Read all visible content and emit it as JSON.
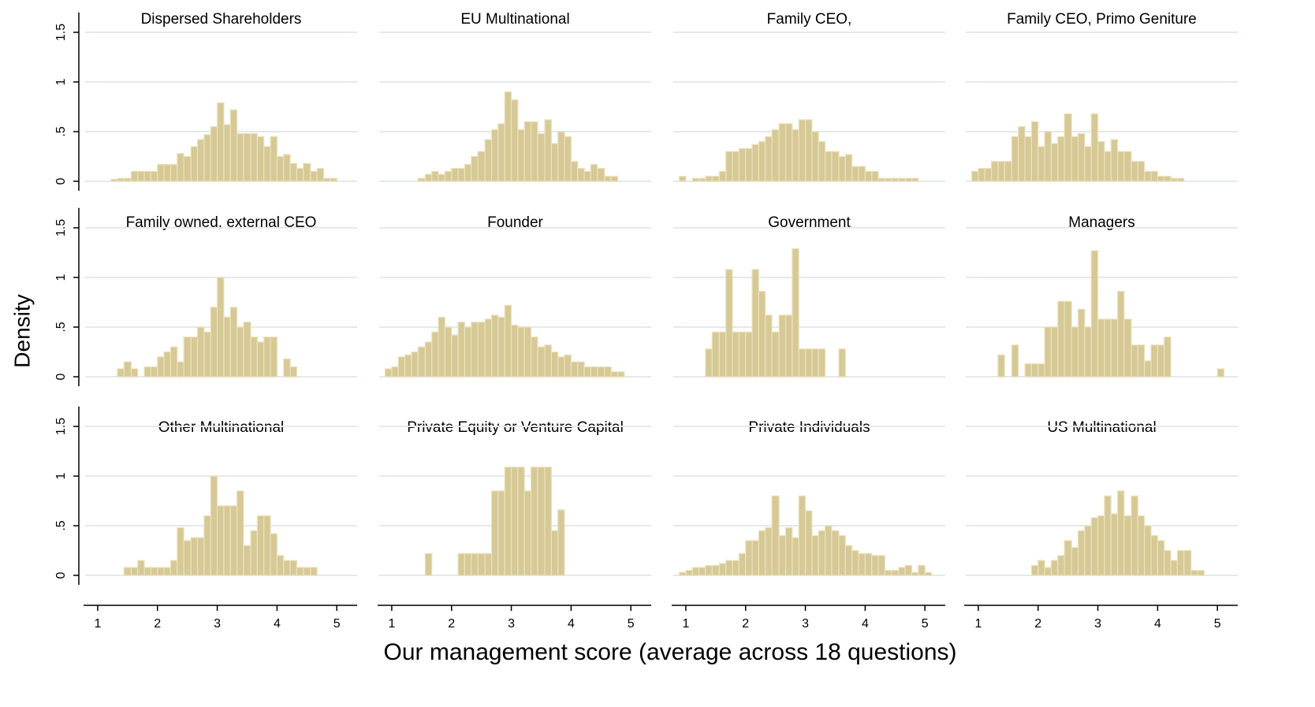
{
  "ylabel": "Density",
  "xlabel": "Our management score (average across 18 questions)",
  "chart_data": [
    {
      "type": "histogram",
      "title": "Dispersed Shareholders",
      "color": "#d6c995",
      "grid": true,
      "bins": [
        0.89,
        1,
        1.11,
        1.22,
        1.33,
        1.44,
        1.56,
        1.67,
        1.78,
        1.89,
        2,
        2.11,
        2.22,
        2.33,
        2.44,
        2.56,
        2.67,
        2.78,
        2.89,
        3,
        3.11,
        3.22,
        3.33,
        3.44,
        3.56,
        3.67,
        3.78,
        3.89,
        4,
        4.11,
        4.22,
        4.33,
        4.44,
        4.56,
        4.67,
        4.78,
        4.89,
        5,
        5.11
      ],
      "values": [
        0,
        0,
        0,
        0.02,
        0.03,
        0.03,
        0.1,
        0.1,
        0.1,
        0.1,
        0.17,
        0.17,
        0.17,
        0.28,
        0.25,
        0.35,
        0.42,
        0.47,
        0.55,
        0.79,
        0.57,
        0.72,
        0.48,
        0.48,
        0.48,
        0.45,
        0.35,
        0.45,
        0.25,
        0.27,
        0.18,
        0.13,
        0.18,
        0.1,
        0.13,
        0.03,
        0.03,
        0
      ],
      "xlim": [
        0.79,
        5.34
      ],
      "ylim": [
        0,
        1.7
      ],
      "yticks": [
        0,
        {
          "value": 0.5,
          "label": ".5"
        },
        1,
        1.5
      ]
    },
    {
      "type": "histogram",
      "title": "EU Multinational",
      "color": "#d6c995",
      "grid": true,
      "bins": [
        0.89,
        1,
        1.11,
        1.22,
        1.33,
        1.44,
        1.56,
        1.67,
        1.78,
        1.89,
        2,
        2.11,
        2.22,
        2.33,
        2.44,
        2.56,
        2.67,
        2.78,
        2.89,
        3,
        3.11,
        3.22,
        3.33,
        3.44,
        3.56,
        3.67,
        3.78,
        3.89,
        4,
        4.11,
        4.22,
        4.33,
        4.44,
        4.56,
        4.67,
        4.78,
        4.89,
        5,
        5.11
      ],
      "values": [
        0,
        0,
        0,
        0,
        0,
        0.03,
        0.07,
        0.1,
        0.07,
        0.1,
        0.13,
        0.13,
        0.17,
        0.25,
        0.3,
        0.42,
        0.52,
        0.58,
        0.9,
        0.82,
        0.52,
        0.6,
        0.6,
        0.48,
        0.62,
        0.38,
        0.5,
        0.45,
        0.2,
        0.13,
        0.1,
        0.17,
        0.13,
        0.05,
        0.05,
        0,
        0,
        0
      ],
      "xlim": [
        0.79,
        5.34
      ],
      "ylim": [
        0,
        1.7
      ],
      "yticks": [
        0,
        {
          "value": 0.5,
          "label": ".5"
        },
        1,
        1.5
      ]
    },
    {
      "type": "histogram",
      "title": "Family CEO,",
      "color": "#d6c995",
      "grid": true,
      "bins": [
        0.89,
        1,
        1.11,
        1.22,
        1.33,
        1.44,
        1.56,
        1.67,
        1.78,
        1.89,
        2,
        2.11,
        2.22,
        2.33,
        2.44,
        2.56,
        2.67,
        2.78,
        2.89,
        3,
        3.11,
        3.22,
        3.33,
        3.44,
        3.56,
        3.67,
        3.78,
        3.89,
        4,
        4.11,
        4.22,
        4.33,
        4.44,
        4.56,
        4.67,
        4.78,
        4.89,
        5,
        5.11
      ],
      "values": [
        0.05,
        0,
        0.03,
        0.03,
        0.05,
        0.05,
        0.1,
        0.3,
        0.3,
        0.33,
        0.33,
        0.37,
        0.4,
        0.45,
        0.52,
        0.58,
        0.58,
        0.52,
        0.62,
        0.62,
        0.5,
        0.4,
        0.3,
        0.3,
        0.25,
        0.27,
        0.15,
        0.15,
        0.1,
        0.1,
        0.03,
        0.03,
        0.03,
        0.03,
        0.03,
        0.03,
        0,
        0
      ],
      "xlim": [
        0.79,
        5.34
      ],
      "ylim": [
        0,
        1.7
      ],
      "yticks": [
        0,
        {
          "value": 0.5,
          "label": ".5"
        },
        1,
        1.5
      ]
    },
    {
      "type": "histogram",
      "title": "Family CEO, Primo Geniture",
      "color": "#d6c995",
      "grid": true,
      "bins": [
        0.89,
        1,
        1.11,
        1.22,
        1.33,
        1.44,
        1.56,
        1.67,
        1.78,
        1.89,
        2,
        2.11,
        2.22,
        2.33,
        2.44,
        2.56,
        2.67,
        2.78,
        2.89,
        3,
        3.11,
        3.22,
        3.33,
        3.44,
        3.56,
        3.67,
        3.78,
        3.89,
        4,
        4.11,
        4.22,
        4.33,
        4.44,
        4.56,
        4.67,
        4.78,
        4.89,
        5,
        5.11
      ],
      "values": [
        0.1,
        0.13,
        0.13,
        0.2,
        0.2,
        0.2,
        0.45,
        0.55,
        0.45,
        0.6,
        0.35,
        0.5,
        0.38,
        0.45,
        0.68,
        0.45,
        0.48,
        0.35,
        0.68,
        0.4,
        0.3,
        0.42,
        0.3,
        0.3,
        0.2,
        0.2,
        0.1,
        0.1,
        0.05,
        0.05,
        0.03,
        0.03,
        0,
        0,
        0,
        0,
        0,
        0
      ],
      "xlim": [
        0.79,
        5.34
      ],
      "ylim": [
        0,
        1.7
      ],
      "yticks": [
        0,
        {
          "value": 0.5,
          "label": ".5"
        },
        1,
        1.5
      ]
    },
    {
      "type": "histogram",
      "title": "Family owned, external CEO",
      "color": "#d6c995",
      "grid": true,
      "bins": [
        0.89,
        1,
        1.11,
        1.22,
        1.33,
        1.44,
        1.56,
        1.67,
        1.78,
        1.89,
        2,
        2.11,
        2.22,
        2.33,
        2.44,
        2.56,
        2.67,
        2.78,
        2.89,
        3,
        3.11,
        3.22,
        3.33,
        3.44,
        3.56,
        3.67,
        3.78,
        3.89,
        4,
        4.11,
        4.22,
        4.33,
        4.44,
        4.56,
        4.67,
        4.78,
        4.89,
        5,
        5.11
      ],
      "values": [
        0,
        0,
        0,
        0,
        0.08,
        0.15,
        0.08,
        0,
        0.1,
        0.1,
        0.2,
        0.25,
        0.3,
        0.15,
        0.4,
        0.4,
        0.5,
        0.45,
        0.7,
        1.0,
        0.6,
        0.7,
        0.5,
        0.55,
        0.4,
        0.35,
        0.4,
        0.4,
        0,
        0.18,
        0.1,
        0,
        0,
        0,
        0,
        0,
        0,
        0
      ],
      "xlim": [
        0.79,
        5.34
      ],
      "ylim": [
        0,
        1.7
      ],
      "yticks": [
        0,
        {
          "value": 0.5,
          "label": ".5"
        },
        1,
        1.5
      ]
    },
    {
      "type": "histogram",
      "title": "Founder",
      "color": "#d6c995",
      "grid": true,
      "bins": [
        0.89,
        1,
        1.11,
        1.22,
        1.33,
        1.44,
        1.56,
        1.67,
        1.78,
        1.89,
        2,
        2.11,
        2.22,
        2.33,
        2.44,
        2.56,
        2.67,
        2.78,
        2.89,
        3,
        3.11,
        3.22,
        3.33,
        3.44,
        3.56,
        3.67,
        3.78,
        3.89,
        4,
        4.11,
        4.22,
        4.33,
        4.44,
        4.56,
        4.67,
        4.78,
        4.89,
        5,
        5.11
      ],
      "values": [
        0.08,
        0.1,
        0.2,
        0.22,
        0.25,
        0.3,
        0.35,
        0.45,
        0.6,
        0.5,
        0.42,
        0.55,
        0.5,
        0.55,
        0.55,
        0.58,
        0.62,
        0.6,
        0.72,
        0.52,
        0.5,
        0.5,
        0.4,
        0.3,
        0.32,
        0.25,
        0.2,
        0.22,
        0.15,
        0.15,
        0.1,
        0.1,
        0.1,
        0.1,
        0.05,
        0.05,
        0,
        0
      ],
      "xlim": [
        0.79,
        5.34
      ],
      "ylim": [
        0,
        1.7
      ],
      "yticks": [
        0,
        {
          "value": 0.5,
          "label": ".5"
        },
        1,
        1.5
      ]
    },
    {
      "type": "histogram",
      "title": "Government",
      "color": "#d6c995",
      "grid": true,
      "bins": [
        0.89,
        1,
        1.11,
        1.22,
        1.33,
        1.44,
        1.56,
        1.67,
        1.78,
        1.89,
        2,
        2.11,
        2.22,
        2.33,
        2.44,
        2.56,
        2.67,
        2.78,
        2.89,
        3,
        3.11,
        3.22,
        3.33,
        3.44,
        3.56,
        3.67,
        3.78,
        3.89,
        4,
        4.11,
        4.22,
        4.33,
        4.44,
        4.56,
        4.67,
        4.78,
        4.89,
        5,
        5.11
      ],
      "values": [
        0,
        0,
        0,
        0,
        0.28,
        0.45,
        0.45,
        1.08,
        0.45,
        0.45,
        0.45,
        1.08,
        0.86,
        0.62,
        0.45,
        0.62,
        0.62,
        1.29,
        0.28,
        0.28,
        0.28,
        0.28,
        0,
        0,
        0.28,
        0,
        0,
        0,
        0,
        0,
        0,
        0,
        0,
        0,
        0,
        0,
        0,
        0
      ],
      "xlim": [
        0.79,
        5.34
      ],
      "ylim": [
        0,
        1.7
      ],
      "yticks": [
        0,
        {
          "value": 0.5,
          "label": ".5"
        },
        1,
        1.5
      ]
    },
    {
      "type": "histogram",
      "title": "Managers",
      "color": "#d6c995",
      "grid": true,
      "bins": [
        0.89,
        1,
        1.11,
        1.22,
        1.33,
        1.44,
        1.56,
        1.67,
        1.78,
        1.89,
        2,
        2.11,
        2.22,
        2.33,
        2.44,
        2.56,
        2.67,
        2.78,
        2.89,
        3,
        3.11,
        3.22,
        3.33,
        3.44,
        3.56,
        3.67,
        3.78,
        3.89,
        4,
        4.11,
        4.22,
        4.33,
        4.44,
        4.56,
        4.67,
        4.78,
        4.89,
        5,
        5.11
      ],
      "values": [
        0,
        0,
        0,
        0,
        0.22,
        0,
        0.32,
        0,
        0.13,
        0.13,
        0.13,
        0.5,
        0.5,
        0.76,
        0.76,
        0.5,
        0.68,
        0.5,
        1.27,
        0.58,
        0.58,
        0.58,
        0.86,
        0.58,
        0.32,
        0.32,
        0.16,
        0.32,
        0.32,
        0.4,
        0,
        0,
        0,
        0,
        0,
        0,
        0,
        0.08
      ],
      "xlim": [
        0.79,
        5.34
      ],
      "ylim": [
        0,
        1.7
      ],
      "yticks": [
        0,
        {
          "value": 0.5,
          "label": ".5"
        },
        1,
        1.5
      ]
    },
    {
      "type": "histogram",
      "title": "Other Multinational",
      "color": "#d6c995",
      "grid": true,
      "bins": [
        0.89,
        1,
        1.11,
        1.22,
        1.33,
        1.44,
        1.56,
        1.67,
        1.78,
        1.89,
        2,
        2.11,
        2.22,
        2.33,
        2.44,
        2.56,
        2.67,
        2.78,
        2.89,
        3,
        3.11,
        3.22,
        3.33,
        3.44,
        3.56,
        3.67,
        3.78,
        3.89,
        4,
        4.11,
        4.22,
        4.33,
        4.44,
        4.56,
        4.67,
        4.78,
        4.89,
        5,
        5.11
      ],
      "values": [
        0,
        0,
        0,
        0,
        0,
        0.08,
        0.08,
        0.15,
        0.08,
        0.08,
        0.08,
        0.08,
        0.15,
        0.48,
        0.35,
        0.38,
        0.38,
        0.6,
        1.0,
        0.7,
        0.7,
        0.7,
        0.85,
        0.3,
        0.45,
        0.6,
        0.6,
        0.42,
        0.2,
        0.15,
        0.15,
        0.08,
        0.08,
        0.08,
        0,
        0,
        0,
        0
      ],
      "xlim": [
        0.79,
        5.34
      ],
      "ylim": [
        0,
        1.7
      ],
      "yticks": [
        0,
        {
          "value": 0.5,
          "label": ".5"
        },
        1,
        1.5
      ],
      "xticks": [
        1,
        2,
        3,
        4,
        5
      ]
    },
    {
      "type": "histogram",
      "title": "Private Equity or Venture Capital",
      "color": "#d6c995",
      "grid": true,
      "bins": [
        0.89,
        1,
        1.11,
        1.22,
        1.33,
        1.44,
        1.56,
        1.67,
        1.78,
        1.89,
        2,
        2.11,
        2.22,
        2.33,
        2.44,
        2.56,
        2.67,
        2.78,
        2.89,
        3,
        3.11,
        3.22,
        3.33,
        3.44,
        3.56,
        3.67,
        3.78,
        3.89,
        4,
        4.11,
        4.22,
        4.33,
        4.44,
        4.56,
        4.67,
        4.78,
        4.89,
        5,
        5.11
      ],
      "values": [
        0,
        0,
        0,
        0,
        0,
        0,
        0.22,
        0,
        0,
        0,
        0,
        0.22,
        0.22,
        0.22,
        0.22,
        0.22,
        0.85,
        0.85,
        1.09,
        1.09,
        1.09,
        0.85,
        1.09,
        1.09,
        1.09,
        0.45,
        0.66,
        0,
        0,
        0,
        0,
        0,
        0,
        0,
        0,
        0,
        0,
        0
      ],
      "xlim": [
        0.79,
        5.34
      ],
      "ylim": [
        0,
        1.7
      ],
      "yticks": [
        0,
        {
          "value": 0.5,
          "label": ".5"
        },
        1,
        1.5
      ],
      "xticks": [
        1,
        2,
        3,
        4,
        5
      ]
    },
    {
      "type": "histogram",
      "title": "Private Individuals",
      "color": "#d6c995",
      "grid": true,
      "bins": [
        0.89,
        1,
        1.11,
        1.22,
        1.33,
        1.44,
        1.56,
        1.67,
        1.78,
        1.89,
        2,
        2.11,
        2.22,
        2.33,
        2.44,
        2.56,
        2.67,
        2.78,
        2.89,
        3,
        3.11,
        3.22,
        3.33,
        3.44,
        3.56,
        3.67,
        3.78,
        3.89,
        4,
        4.11,
        4.22,
        4.33,
        4.44,
        4.56,
        4.67,
        4.78,
        4.89,
        5,
        5.11
      ],
      "values": [
        0.03,
        0.05,
        0.08,
        0.08,
        0.1,
        0.1,
        0.12,
        0.15,
        0.15,
        0.22,
        0.35,
        0.35,
        0.45,
        0.48,
        0.8,
        0.4,
        0.48,
        0.38,
        0.8,
        0.65,
        0.4,
        0.45,
        0.5,
        0.45,
        0.4,
        0.3,
        0.25,
        0.22,
        0.22,
        0.2,
        0.2,
        0.05,
        0.05,
        0.08,
        0.1,
        0.03,
        0.1,
        0.03
      ],
      "xlim": [
        0.79,
        5.34
      ],
      "ylim": [
        0,
        1.7
      ],
      "yticks": [
        0,
        {
          "value": 0.5,
          "label": ".5"
        },
        1,
        1.5
      ],
      "xticks": [
        1,
        2,
        3,
        4,
        5
      ]
    },
    {
      "type": "histogram",
      "title": "US Multinational",
      "color": "#d6c995",
      "grid": true,
      "bins": [
        0.89,
        1,
        1.11,
        1.22,
        1.33,
        1.44,
        1.56,
        1.67,
        1.78,
        1.89,
        2,
        2.11,
        2.22,
        2.33,
        2.44,
        2.56,
        2.67,
        2.78,
        2.89,
        3,
        3.11,
        3.22,
        3.33,
        3.44,
        3.56,
        3.67,
        3.78,
        3.89,
        4,
        4.11,
        4.22,
        4.33,
        4.44,
        4.56,
        4.67,
        4.78,
        4.89,
        5,
        5.11
      ],
      "values": [
        0,
        0,
        0,
        0,
        0,
        0,
        0,
        0,
        0,
        0.1,
        0.15,
        0.08,
        0.15,
        0.2,
        0.35,
        0.28,
        0.45,
        0.5,
        0.58,
        0.6,
        0.8,
        0.62,
        0.85,
        0.6,
        0.8,
        0.6,
        0.5,
        0.4,
        0.35,
        0.25,
        0.15,
        0.25,
        0.25,
        0.05,
        0.05,
        0,
        0,
        0
      ],
      "xlim": [
        0.79,
        5.34
      ],
      "ylim": [
        0,
        1.7
      ],
      "yticks": [
        0,
        {
          "value": 0.5,
          "label": ".5"
        },
        1,
        1.5
      ],
      "xticks": [
        1,
        2,
        3,
        4,
        5
      ]
    }
  ]
}
